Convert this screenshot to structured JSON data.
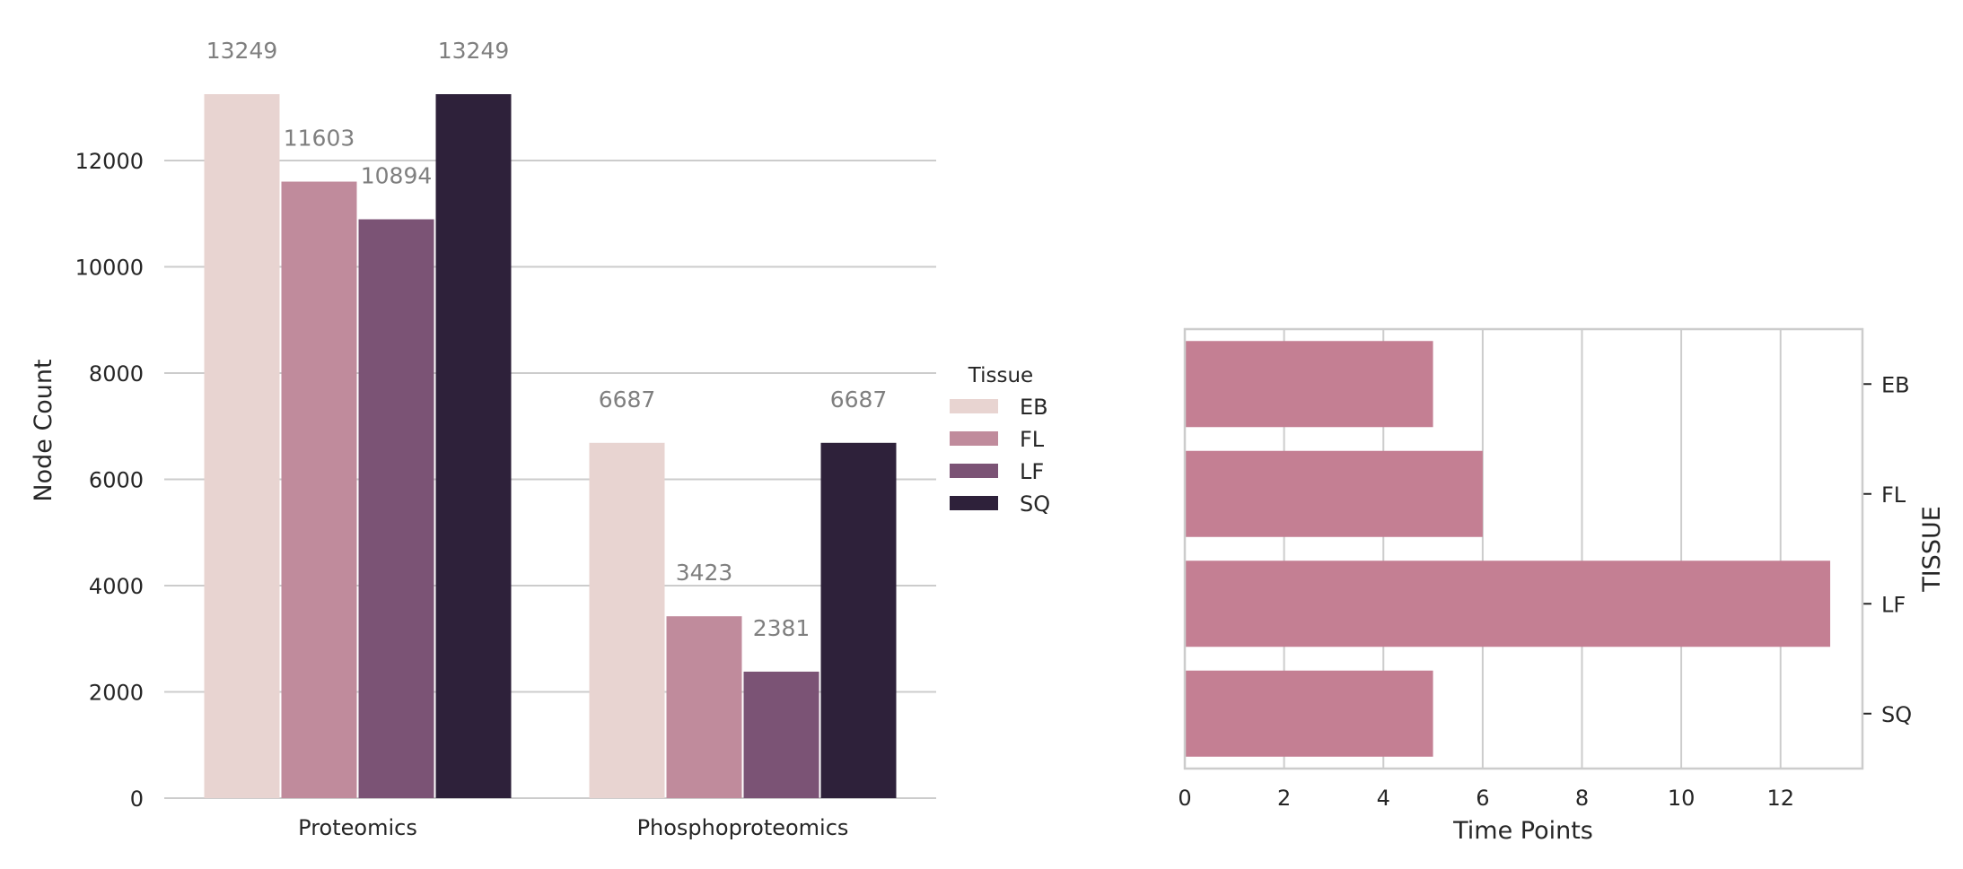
{
  "chart_data": [
    {
      "type": "bar",
      "categories": [
        "Proteomics",
        "Phosphoproteomics"
      ],
      "series": [
        {
          "name": "EB",
          "values": [
            13249,
            6687
          ],
          "color": "#e8d4d1"
        },
        {
          "name": "FL",
          "values": [
            11603,
            3423
          ],
          "color": "#c08b9c"
        },
        {
          "name": "LF",
          "values": [
            10894,
            2381
          ],
          "color": "#7b5375"
        },
        {
          "name": "SQ",
          "values": [
            13249,
            6687
          ],
          "color": "#2e213a"
        }
      ],
      "data_labels": [
        [
          "13249",
          "11603",
          "10894",
          "13249"
        ],
        [
          "6687",
          "3423",
          "2381",
          "6687"
        ]
      ],
      "ylabel": "Node Count",
      "xlabel": "",
      "ylim": [
        0,
        13249
      ],
      "yticks": [
        0,
        2000,
        4000,
        6000,
        8000,
        10000,
        12000
      ],
      "grid": "horizontal",
      "legend": {
        "title": "Tissue",
        "entries": [
          "EB",
          "FL",
          "LF",
          "SQ"
        ],
        "placement": "right"
      }
    },
    {
      "type": "bar",
      "orientation": "horizontal",
      "categories": [
        "EB",
        "FL",
        "LF",
        "SQ"
      ],
      "values": [
        5,
        6,
        13,
        5
      ],
      "color": "#c47f93",
      "xlabel": "Time Points",
      "ylabel": "TISSUE",
      "xlim": [
        0,
        13.65
      ],
      "xticks": [
        0,
        2,
        4,
        6,
        8,
        10,
        12
      ],
      "grid": "vertical",
      "y_axis_side": "right"
    }
  ]
}
